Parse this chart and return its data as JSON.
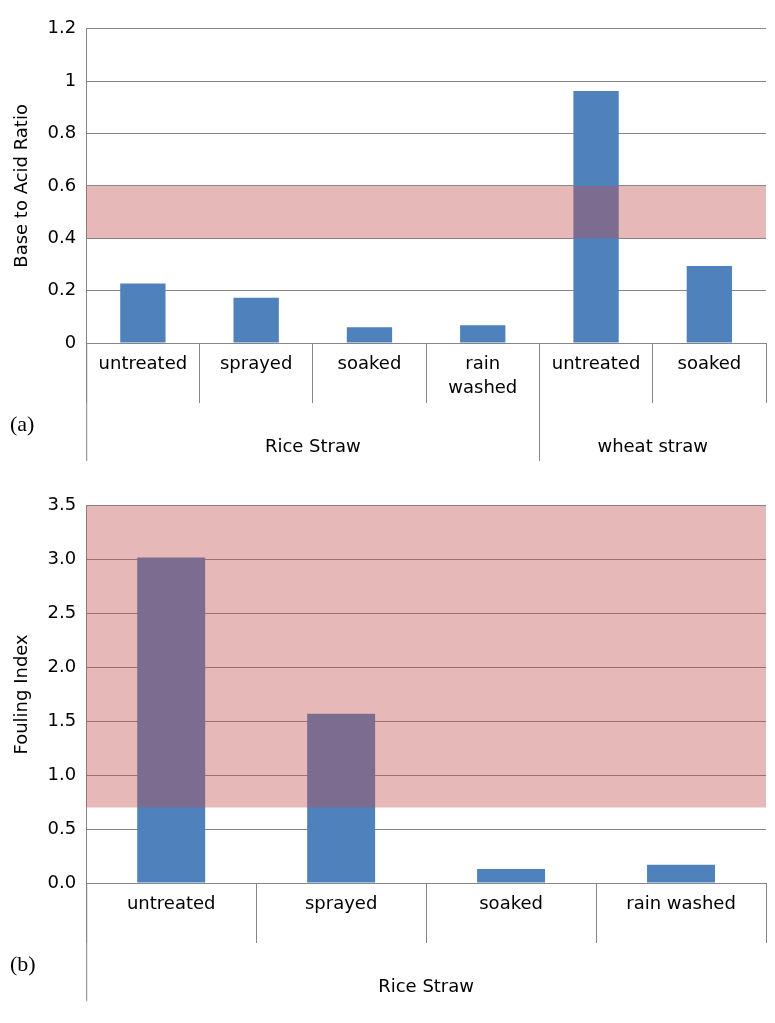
{
  "chart_data": [
    {
      "type": "bar",
      "ylabel": "Base to Acid Ratio",
      "categories": [
        "untreated",
        "sprayed",
        "soaked",
        "rain washed",
        "untreated",
        "soaked"
      ],
      "values": [
        0.227,
        0.173,
        0.06,
        0.068,
        0.962,
        0.294
      ],
      "color": "#4f81bd",
      "ylim": [
        0,
        1.2
      ],
      "yticks": [
        {
          "value": 0,
          "label": "0"
        },
        0.2,
        0.4,
        0.6,
        0.8,
        {
          "value": 1,
          "label": "1"
        },
        1.2
      ],
      "grid": "y",
      "bands": [
        {
          "axis": "y",
          "from": 0.4,
          "to": 0.6,
          "color": "#c0504d"
        }
      ],
      "annotations": [
        "(a)",
        "Rice Straw",
        "wheat straw"
      ]
    },
    {
      "type": "bar",
      "ylabel": "Fouling Index",
      "categories": [
        "untreated",
        "sprayed",
        "soaked",
        "rain washed"
      ],
      "values": [
        3.02,
        1.57,
        0.13,
        0.17
      ],
      "color": "#4f81bd",
      "ylim": [
        0,
        3.5
      ],
      "yticks": [
        {
          "value": 0,
          "label": "0.0"
        },
        {
          "value": 0.5,
          "label": "0.5"
        },
        {
          "value": 1,
          "label": "1.0"
        },
        {
          "value": 1.5,
          "label": "1.5"
        },
        {
          "value": 2,
          "label": "2.0"
        },
        {
          "value": 2.5,
          "label": "2.5"
        },
        {
          "value": 3,
          "label": "3.0"
        },
        {
          "value": 3.5,
          "label": "3.5"
        }
      ],
      "grid": "y",
      "bands": [
        {
          "axis": "y",
          "from": 0.7,
          "to": 3.5,
          "color": "#c0504d"
        }
      ],
      "annotations": [
        "(b)",
        "Rice Straw"
      ]
    }
  ]
}
